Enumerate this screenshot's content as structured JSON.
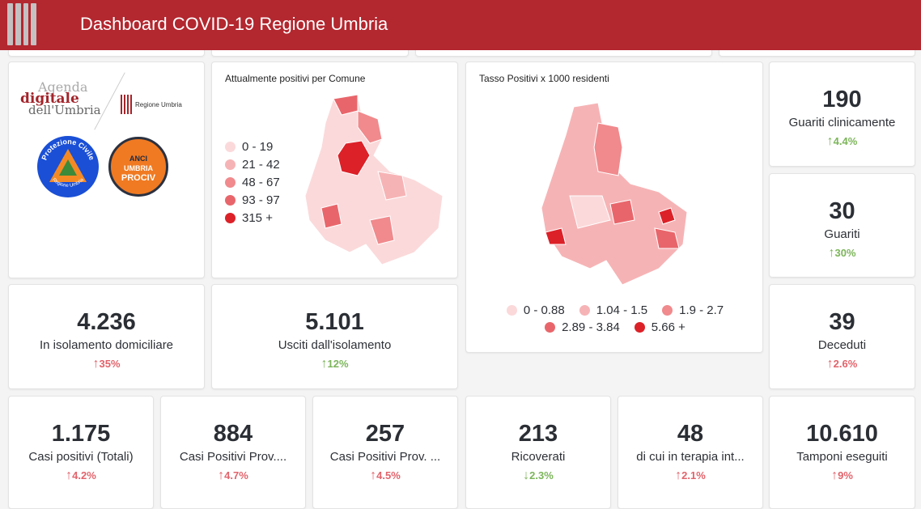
{
  "header": {
    "title": "Dashboard COVID-19 Regione Umbria"
  },
  "logos": {
    "agenda": [
      "Agenda",
      "digitale",
      "dell'Umbria"
    ],
    "regione": "Regione Umbria",
    "protezione": "Protezione Civile",
    "protezione_sub": "Regione Umbria",
    "anci": [
      "ANCI",
      "UMBRIA",
      "PROCIV"
    ]
  },
  "map1": {
    "title": "Attualmente positivi per Comune",
    "legend": [
      {
        "label": "0 - 19",
        "color": "#fbd9da"
      },
      {
        "label": "21 - 42",
        "color": "#f6b3b5"
      },
      {
        "label": "48 - 67",
        "color": "#f08a8d"
      },
      {
        "label": "93 - 97",
        "color": "#e8666b"
      },
      {
        "label": "315 +",
        "color": "#dc2128"
      }
    ]
  },
  "map2": {
    "title": "Tasso Positivi x 1000 residenti",
    "legend": [
      {
        "label": "0 - 0.88",
        "color": "#fbd9da"
      },
      {
        "label": "1.04 - 1.5",
        "color": "#f6b3b5"
      },
      {
        "label": "1.9 - 2.7",
        "color": "#f08a8d"
      },
      {
        "label": "2.89 - 3.84",
        "color": "#e8666b"
      },
      {
        "label": "5.66 +",
        "color": "#dc2128"
      }
    ]
  },
  "kpis": {
    "guariti_clin": {
      "value": "190",
      "label": "Guariti clinicamente",
      "delta": "4.4%",
      "dir": "up",
      "good": true
    },
    "guariti": {
      "value": "30",
      "label": "Guariti",
      "delta": "30%",
      "dir": "up",
      "good": true
    },
    "deceduti": {
      "value": "39",
      "label": "Deceduti",
      "delta": "2.6%",
      "dir": "up",
      "good": false
    },
    "isolamento": {
      "value": "4.236",
      "label": "In isolamento domiciliare",
      "delta": "35%",
      "dir": "up",
      "good": false
    },
    "usciti": {
      "value": "5.101",
      "label": "Usciti dall'isolamento",
      "delta": "12%",
      "dir": "up",
      "good": true
    },
    "casi": {
      "value": "1.175",
      "label": "Casi positivi (Totali)",
      "delta": "4.2%",
      "dir": "up",
      "good": false
    },
    "prov1": {
      "value": "884",
      "label": "Casi Positivi Prov....",
      "delta": "4.7%",
      "dir": "up",
      "good": false
    },
    "prov2": {
      "value": "257",
      "label": "Casi Positivi Prov. ...",
      "delta": "4.5%",
      "dir": "up",
      "good": false
    },
    "ricoverati": {
      "value": "213",
      "label": "Ricoverati",
      "delta": "2.3%",
      "dir": "down",
      "good": true
    },
    "terapia": {
      "value": "48",
      "label": "di cui in terapia int...",
      "delta": "2.1%",
      "dir": "up",
      "good": false
    },
    "tamponi": {
      "value": "10.610",
      "label": "Tamponi eseguiti",
      "delta": "9%",
      "dir": "up",
      "good": false
    }
  }
}
